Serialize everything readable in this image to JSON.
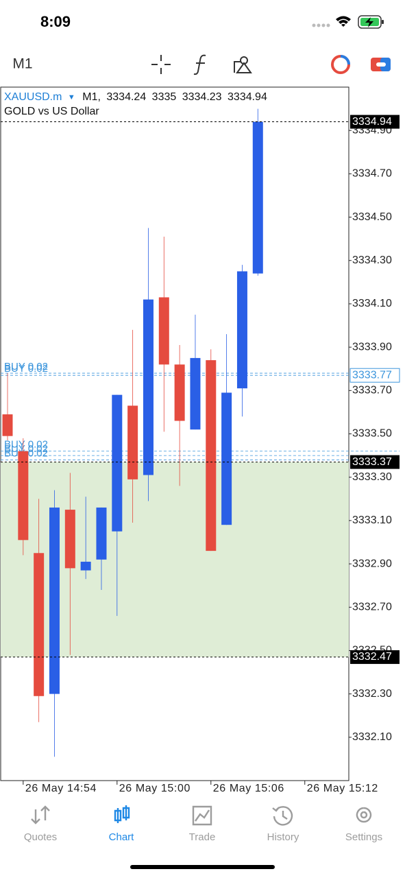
{
  "status_bar": {
    "time": "8:09"
  },
  "toolbar": {
    "timeframe": "M1"
  },
  "chart_data": {
    "type": "candlestick",
    "symbol": "XAUUSD.m",
    "header_timeframe": "M1,",
    "subtitle": "GOLD vs US Dollar",
    "categories": [
      null,
      "26 May 14:54",
      null,
      null,
      null,
      null,
      null,
      "26 May 15:00",
      null,
      null,
      null,
      null,
      null,
      "26 May 15:06",
      null,
      null,
      null
    ],
    "next_x_label": "26 May 15:12",
    "open": [
      3333.59,
      3333.42,
      3332.95,
      3332.3,
      3333.15,
      3332.87,
      3332.92,
      3333.05,
      3333.63,
      3333.31,
      3334.13,
      3333.82,
      3333.52,
      3333.84,
      3333.08,
      3333.71,
      3334.24
    ],
    "high": [
      3333.78,
      3333.48,
      3333.2,
      3333.24,
      3333.32,
      3333.21,
      3333.16,
      3333.68,
      3333.98,
      3334.45,
      3334.41,
      3333.91,
      3334.05,
      3333.89,
      3333.96,
      3334.28,
      3335.0
    ],
    "low": [
      3333.47,
      3332.94,
      3332.17,
      3332.01,
      3332.48,
      3332.83,
      3332.78,
      3332.66,
      3333.09,
      3333.19,
      3333.51,
      3333.26,
      3333.52,
      3332.96,
      3333.08,
      3333.58,
      3334.23
    ],
    "close": [
      3333.49,
      3333.01,
      3332.29,
      3333.16,
      3332.88,
      3332.91,
      3333.16,
      3333.68,
      3333.29,
      3334.12,
      3333.82,
      3333.56,
      3333.85,
      3332.96,
      3333.69,
      3334.25,
      3334.94
    ],
    "up_color": "#2a5fe6",
    "down_color": "#e54b3f",
    "ylim": [
      3331.9,
      3335.1
    ],
    "yticks": [
      {
        "value": 3332.1,
        "label": "3332.10"
      },
      {
        "value": 3332.3,
        "label": "3332.30"
      },
      {
        "value": 3332.5,
        "label": "3332.50"
      },
      {
        "value": 3332.7,
        "label": "3332.70"
      },
      {
        "value": 3332.9,
        "label": "3332.90"
      },
      {
        "value": 3333.1,
        "label": "3333.10"
      },
      {
        "value": 3333.3,
        "label": "3333.30"
      },
      {
        "value": 3333.5,
        "label": "3333.50"
      },
      {
        "value": 3333.7,
        "label": "3333.70"
      },
      {
        "value": 3333.9,
        "label": "3333.90"
      },
      {
        "value": 3334.1,
        "label": "3334.10"
      },
      {
        "value": 3334.3,
        "label": "3334.30"
      },
      {
        "value": 3334.5,
        "label": "3334.50"
      },
      {
        "value": 3334.7,
        "label": "3334.70"
      },
      {
        "value": 3334.9,
        "label": "3334.90"
      }
    ],
    "levels": [
      3334.94,
      3333.37,
      3332.47
    ],
    "zone": {
      "from": 3332.47,
      "to": 3333.37,
      "color": "#dfedd6"
    },
    "orders": [
      {
        "label": "BUY 0.02",
        "price": 3333.78
      },
      {
        "label": "BUY 0.02",
        "price": 3333.77
      },
      {
        "label": "BUY 0.02",
        "price": 3333.42
      },
      {
        "label": "BUY 0.02",
        "price": 3333.4
      },
      {
        "label": "BUY 0.02",
        "price": 3333.38
      }
    ],
    "order_price_label": 3333.77,
    "order_color": "#3b95dc"
  },
  "tab_bar": {
    "tabs": [
      "Quotes",
      "Chart",
      "Trade",
      "History",
      "Settings"
    ],
    "active": 1
  }
}
